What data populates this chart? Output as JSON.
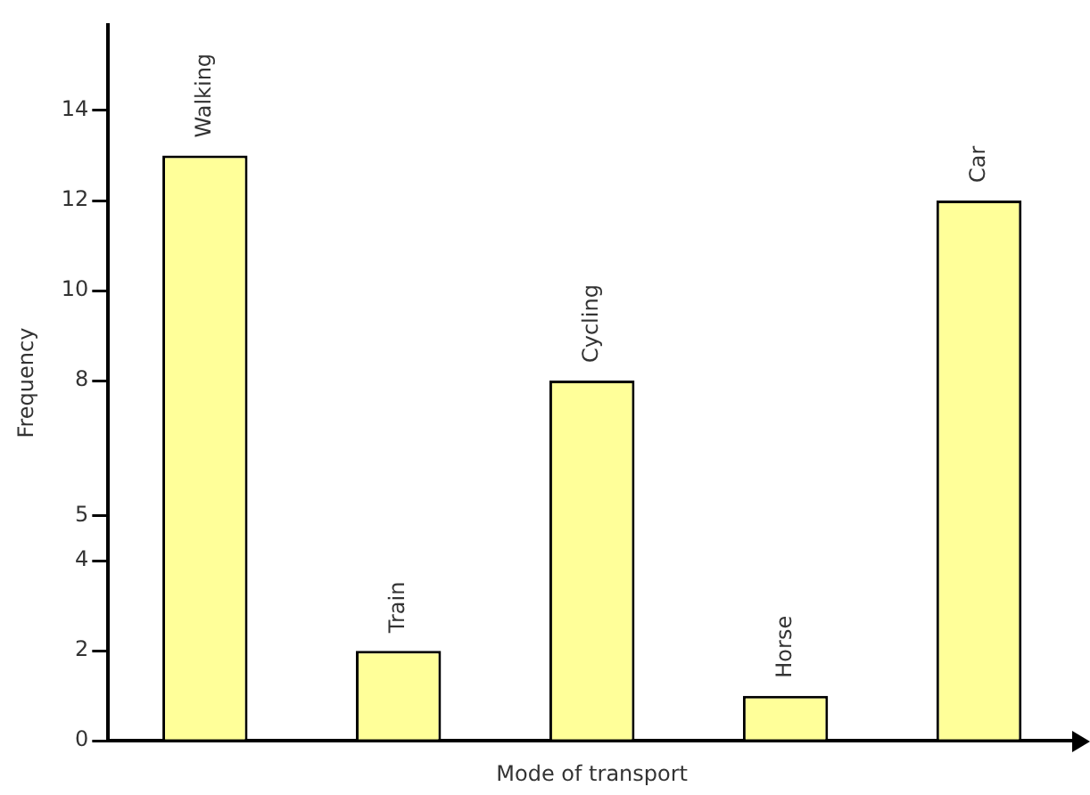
{
  "chart_data": {
    "type": "bar",
    "xlabel": "Mode of transport",
    "ylabel": "Frequency",
    "categories": [
      "Walking",
      "Train",
      "Cycling",
      "Horse",
      "Car"
    ],
    "values": [
      13,
      2,
      8,
      1,
      12
    ],
    "color": "#ffff99",
    "ylim": [
      0,
      15.9
    ],
    "yticks": [
      0,
      2,
      4,
      5,
      8,
      10,
      12,
      14
    ],
    "grid": false,
    "legend": false
  }
}
